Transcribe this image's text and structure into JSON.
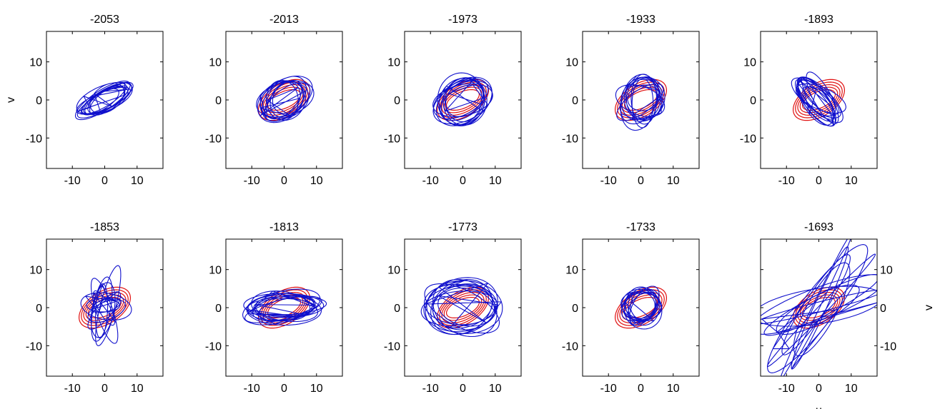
{
  "chart_data": {
    "type": "scatter",
    "layout": {
      "rows": 2,
      "cols": 5
    },
    "xlim": [
      -18,
      18
    ],
    "ylim": [
      -18,
      18
    ],
    "xticks": [
      -10,
      0,
      10
    ],
    "yticks": [
      -10,
      0,
      10
    ],
    "xlabel": "u",
    "ylabel": "v",
    "colors": {
      "reference": "#e01010",
      "trajectory": "#1010cc"
    },
    "reference_orbit": {
      "center": [
        0,
        0
      ],
      "semi_major": 7.5,
      "semi_minor": 3.6,
      "tilt_deg": 22
    },
    "panels": [
      {
        "title": "-2053",
        "show_reference": false,
        "trajectory": {
          "a": [
            7.2,
            2.4
          ],
          "b": [
            2.8,
            0.8
          ],
          "tilt_deg": [
            24,
            8
          ],
          "center": [
            0,
            0
          ]
        }
      },
      {
        "title": "-2013",
        "show_reference": true,
        "trajectory": {
          "a": [
            7.0,
            2.5
          ],
          "b": [
            4.2,
            1.2
          ],
          "tilt_deg": [
            30,
            18
          ],
          "center": [
            0,
            0
          ]
        }
      },
      {
        "title": "-1973",
        "show_reference": true,
        "trajectory": {
          "a": [
            8.0,
            2.5
          ],
          "b": [
            5.5,
            1.5
          ],
          "tilt_deg": [
            20,
            14
          ],
          "center": [
            0,
            0
          ]
        }
      },
      {
        "title": "-1933",
        "show_reference": true,
        "trajectory": {
          "a": [
            6.2,
            2.0
          ],
          "b": [
            4.5,
            1.5
          ],
          "tilt_deg": [
            40,
            60
          ],
          "center": [
            0,
            0
          ]
        }
      },
      {
        "title": "-1893",
        "show_reference": true,
        "trajectory": {
          "a": [
            7.0,
            1.8
          ],
          "b": [
            2.8,
            1.0
          ],
          "tilt_deg": [
            -38,
            20
          ],
          "center": [
            0,
            0
          ]
        }
      },
      {
        "title": "-1853",
        "show_reference": true,
        "trajectory": {
          "a": [
            8.0,
            3.5
          ],
          "b": [
            2.5,
            1.2
          ],
          "tilt_deg": [
            55,
            70
          ],
          "center": [
            0,
            0
          ]
        }
      },
      {
        "title": "-1813",
        "show_reference": true,
        "trajectory": {
          "a": [
            10.5,
            2.0
          ],
          "b": [
            3.2,
            1.0
          ],
          "tilt_deg": [
            2,
            10
          ],
          "center": [
            0,
            0
          ]
        }
      },
      {
        "title": "-1773",
        "show_reference": true,
        "trajectory": {
          "a": [
            10.5,
            2.0
          ],
          "b": [
            6.0,
            1.5
          ],
          "tilt_deg": [
            0,
            22
          ],
          "center": [
            0,
            0
          ]
        }
      },
      {
        "title": "-1733",
        "show_reference": true,
        "trajectory": {
          "a": [
            5.5,
            1.2
          ],
          "b": [
            4.2,
            1.0
          ],
          "tilt_deg": [
            20,
            40
          ],
          "center": [
            0,
            0
          ]
        }
      },
      {
        "title": "-1693",
        "show_reference": true,
        "trajectory": {
          "a": [
            18.0,
            5.0
          ],
          "b": [
            3.5,
            2.5
          ],
          "tilt_deg": [
            28,
            35
          ],
          "center": [
            0,
            0
          ]
        }
      }
    ]
  }
}
